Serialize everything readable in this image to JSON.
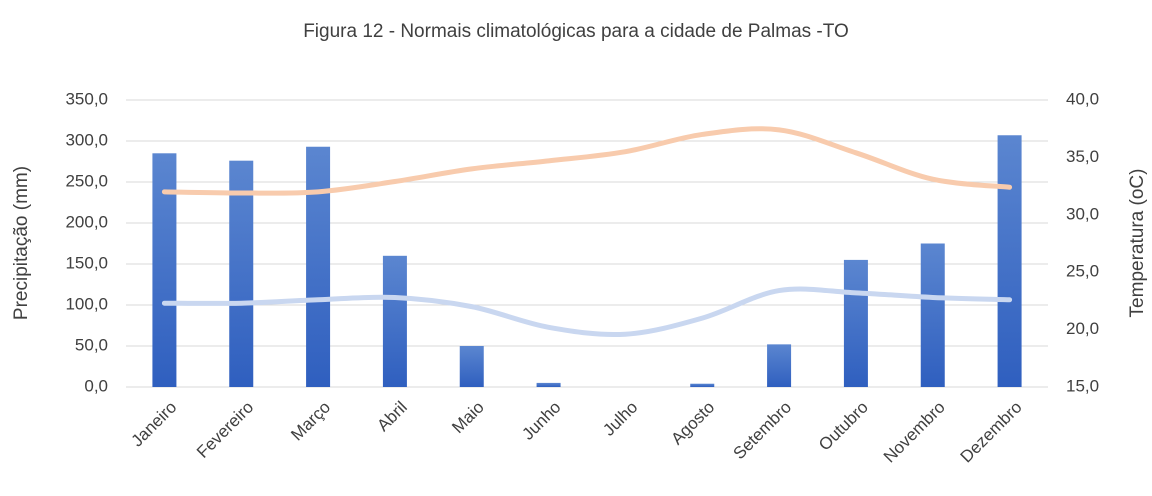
{
  "chart_data": {
    "type": "bar_line",
    "title": "Figura 12 - Normais climatológicas para a cidade de Palmas -TO",
    "y_label": "Precipitação (mm)",
    "y2_label": "Temperatura (oC)",
    "categories": [
      "Janeiro",
      "Fevereiro",
      "Março",
      "Abril",
      "Maio",
      "Junho",
      "Julho",
      "Agosto",
      "Setembro",
      "Outubro",
      "Novembro",
      "Dezembro"
    ],
    "series": [
      {
        "type": "bar",
        "color": "#4472c4",
        "values": [
          285,
          276,
          293,
          160,
          50,
          5,
          0,
          4,
          52,
          155,
          175,
          307
        ]
      },
      {
        "type": "line",
        "axis": "y2",
        "color": "#f8cbad",
        "values": [
          32.0,
          31.9,
          32.0,
          32.9,
          34.0,
          34.7,
          35.5,
          37.0,
          37.4,
          35.4,
          33.1,
          32.4
        ]
      },
      {
        "type": "line",
        "axis": "y2",
        "color": "#c9d7f0",
        "values": [
          22.3,
          22.3,
          22.6,
          22.8,
          22.0,
          20.2,
          19.6,
          21.0,
          23.4,
          23.2,
          22.8,
          22.6
        ]
      }
    ],
    "ylim": [
      0,
      350
    ],
    "yticks": [
      {
        "value": 0,
        "label": "0,0"
      },
      {
        "value": 50,
        "label": "50,0"
      },
      {
        "value": 100,
        "label": "100,0"
      },
      {
        "value": 150,
        "label": "150,0"
      },
      {
        "value": 200,
        "label": "200,0"
      },
      {
        "value": 250,
        "label": "250,0"
      },
      {
        "value": 300,
        "label": "300,0"
      },
      {
        "value": 350,
        "label": "350,0"
      }
    ],
    "y2lim": [
      15,
      40
    ],
    "y2ticks": [
      {
        "value": 15,
        "label": "15,0"
      },
      {
        "value": 20,
        "label": "20,0"
      },
      {
        "value": 25,
        "label": "25,0"
      },
      {
        "value": 30,
        "label": "30,0"
      },
      {
        "value": 35,
        "label": "35,0"
      },
      {
        "value": 40,
        "label": "40,0"
      }
    ],
    "grid": true
  }
}
